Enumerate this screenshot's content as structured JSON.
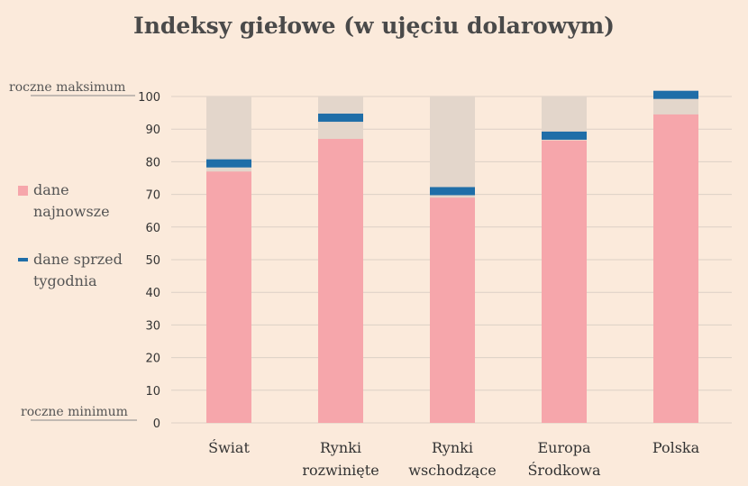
{
  "chart_data": {
    "type": "bar",
    "title": "Indeksy giełowe (w ujęciu dolarowym)",
    "categories": [
      "Świat",
      "Rynki rozwinięte",
      "Rynki wschodzące",
      "Europa Środkowa",
      "Polska"
    ],
    "category_lines": [
      [
        "Świat"
      ],
      [
        "Rynki",
        "rozwinięte"
      ],
      [
        "Rynki",
        "wschodzące"
      ],
      [
        "Europa",
        "Środkowa"
      ],
      [
        "Polska"
      ]
    ],
    "series": [
      {
        "name": "dane najnowsze",
        "values": [
          77,
          87,
          69,
          86.5,
          94.5
        ]
      },
      {
        "name": "dane sprzed tygodnia",
        "values": [
          79.5,
          93.5,
          71,
          88,
          100.5
        ]
      }
    ],
    "range_max": 100,
    "ylim": [
      0,
      100
    ],
    "yticks": [
      0,
      10,
      20,
      30,
      40,
      50,
      60,
      70,
      80,
      90,
      100
    ],
    "grid": true,
    "axis_annotations": {
      "top": "roczne maksimum",
      "bottom": "roczne minimum"
    },
    "legend": {
      "position": "left",
      "latest": "dane\nnajnowsze",
      "previous": "dane sprzed\ntygodnia"
    },
    "colors": {
      "background": "#fbeadb",
      "range": "#e3d6cb",
      "latest": "#f6a6ab",
      "previous": "#1f6ea8",
      "grid": "#dcd0c6"
    }
  }
}
